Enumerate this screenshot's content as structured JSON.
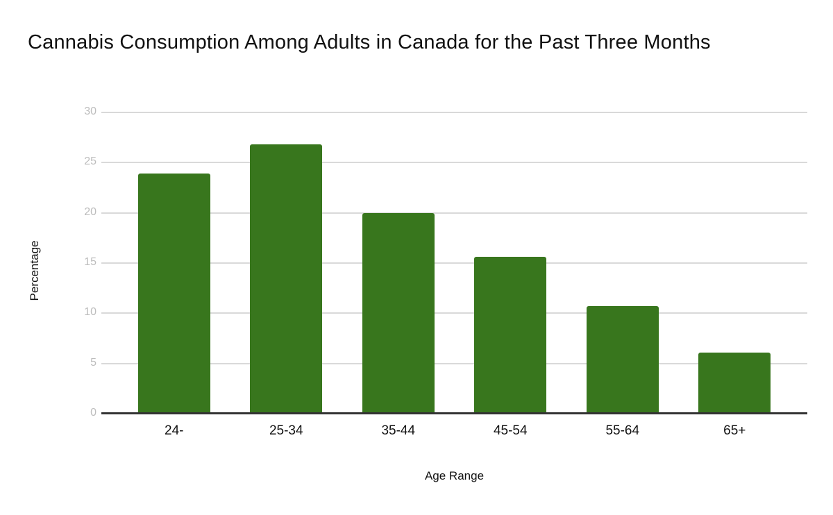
{
  "page": {
    "background": "#ffffff"
  },
  "chart_data": {
    "type": "bar",
    "title": "Cannabis Consumption Among Adults in Canada for the Past Three Months",
    "categories": [
      "24-",
      "25-34",
      "35-44",
      "45-54",
      "55-64",
      "65+"
    ],
    "values": [
      23.9,
      26.8,
      20,
      15.6,
      10.7,
      6.1
    ],
    "xlabel": "Age Range",
    "ylabel": "Percentage",
    "ylim": [
      0,
      30
    ],
    "yticks": [
      0,
      5,
      10,
      15,
      20,
      25,
      30
    ],
    "grid": true,
    "legend": "none",
    "colors": {
      "bar": "#38761d",
      "gridline": "#d9d9d9",
      "axis_line": "#333333",
      "ytick_label": "#bdbdbd",
      "xtick_label": "#111111",
      "title": "#111111"
    }
  }
}
